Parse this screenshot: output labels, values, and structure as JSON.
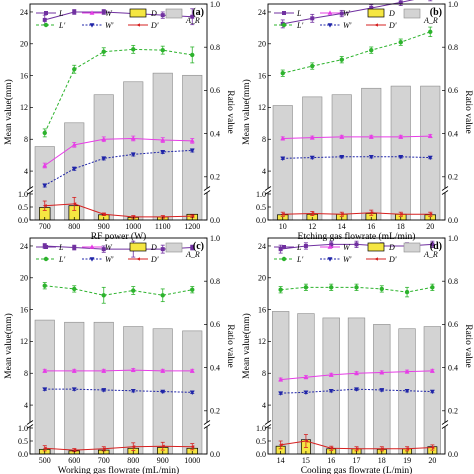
{
  "chart_data": [
    {
      "type": "bar+line",
      "panel_label": "(a)",
      "xlabel": "RF power (W)",
      "ylabel": "Mean value(mm)",
      "y2label": "Ratio value",
      "categories": [
        "700",
        "800",
        "900",
        "1000",
        "1100",
        "1200"
      ],
      "ylim": [
        0,
        25
      ],
      "y2lim": [
        0,
        1.0
      ],
      "yticks": [
        "0.0",
        "0.5",
        "1.0",
        "4",
        "8",
        "12",
        "16",
        "20",
        "24"
      ],
      "y2ticks": [
        "0.0",
        "0.2",
        "0.4",
        "0.6",
        "0.8",
        "1.0"
      ],
      "series": [
        {
          "name": "L",
          "key": "L",
          "color": "#7030a0",
          "values": [
            23.0,
            24.0,
            24.0,
            23.8,
            23.6,
            23.4
          ],
          "errors": [
            0.6,
            0.3,
            0.3,
            0.3,
            0.4,
            1.0
          ]
        },
        {
          "name": "W",
          "key": "W",
          "color": "#e63de6",
          "values": [
            4.7,
            7.3,
            8.0,
            8.1,
            7.9,
            7.8
          ],
          "errors": [
            0.3,
            0.3,
            0.3,
            0.3,
            0.3,
            0.3
          ]
        },
        {
          "name": "L'",
          "key": "Lp",
          "color": "#2db32d",
          "values": [
            8.8,
            16.8,
            19.0,
            19.3,
            19.2,
            18.6
          ],
          "errors": [
            0.5,
            0.5,
            0.5,
            0.5,
            0.5,
            1.0
          ]
        },
        {
          "name": "W'",
          "key": "Wp",
          "color": "#1f24a8",
          "values": [
            2.2,
            4.3,
            5.6,
            6.1,
            6.4,
            6.6
          ],
          "errors": [
            0.2,
            0.2,
            0.2,
            0.2,
            0.2,
            0.2
          ]
        },
        {
          "name": "D'",
          "key": "Dp",
          "color": "#d62020",
          "values": [
            0.55,
            0.62,
            0.22,
            0.12,
            0.12,
            0.15
          ],
          "errors": [
            0.18,
            0.25,
            0.05,
            0.05,
            0.05,
            0.05
          ]
        }
      ],
      "bars_D": {
        "name": "D",
        "color": "#f5e642",
        "values": [
          0.48,
          0.55,
          0.2,
          0.1,
          0.12,
          0.22
        ]
      },
      "bars_AR": {
        "name": "A_R",
        "color": "#d3d3d3",
        "values": [
          0.34,
          0.45,
          0.58,
          0.64,
          0.68,
          0.67
        ]
      }
    },
    {
      "type": "bar+line",
      "panel_label": "(b)",
      "xlabel": "Etching gas flowrate (mL/min)",
      "ylabel": "Mean value(mm)",
      "y2label": "Ratio value",
      "categories": [
        "10",
        "12",
        "14",
        "16",
        "18",
        "20"
      ],
      "ylim": [
        0,
        25
      ],
      "y2lim": [
        0,
        1.0
      ],
      "yticks": [
        "0.0",
        "0.5",
        "1.0",
        "4",
        "8",
        "12",
        "16",
        "20",
        "24"
      ],
      "y2ticks": [
        "0.0",
        "0.2",
        "0.4",
        "0.6",
        "0.8",
        "1.0"
      ],
      "series": [
        {
          "name": "L",
          "key": "L",
          "color": "#7030a0",
          "values": [
            22.5,
            23.2,
            23.8,
            24.5,
            25.2,
            26.0
          ],
          "errors": [
            0.5,
            0.5,
            0.4,
            0.4,
            0.4,
            0.6
          ]
        },
        {
          "name": "W",
          "key": "W",
          "color": "#e63de6",
          "values": [
            8.1,
            8.2,
            8.3,
            8.3,
            8.3,
            8.4
          ],
          "errors": [
            0.2,
            0.2,
            0.2,
            0.2,
            0.2,
            0.2
          ]
        },
        {
          "name": "L'",
          "key": "Lp",
          "color": "#2db32d",
          "values": [
            16.3,
            17.2,
            18.0,
            19.2,
            20.2,
            21.5
          ],
          "errors": [
            0.4,
            0.4,
            0.4,
            0.4,
            0.4,
            0.6
          ]
        },
        {
          "name": "W'",
          "key": "Wp",
          "color": "#1f24a8",
          "values": [
            5.6,
            5.7,
            5.8,
            5.8,
            5.8,
            5.7
          ],
          "errors": [
            0.15,
            0.15,
            0.15,
            0.15,
            0.15,
            0.15
          ]
        },
        {
          "name": "D'",
          "key": "Dp",
          "color": "#d62020",
          "values": [
            0.22,
            0.25,
            0.22,
            0.28,
            0.22,
            0.22
          ],
          "errors": [
            0.08,
            0.08,
            0.08,
            0.1,
            0.08,
            0.08
          ]
        }
      ],
      "bars_D": {
        "name": "D",
        "color": "#f5e642",
        "values": [
          0.2,
          0.22,
          0.22,
          0.25,
          0.22,
          0.2
        ]
      },
      "bars_AR": {
        "name": "A_R",
        "color": "#d3d3d3",
        "values": [
          0.53,
          0.57,
          0.58,
          0.61,
          0.62,
          0.62
        ]
      }
    },
    {
      "type": "bar+line",
      "panel_label": "(c)",
      "xlabel": "Working gas flowrate (mL/min)",
      "ylabel": "Mean value(mm)",
      "y2label": "Ratio value",
      "categories": [
        "500",
        "600",
        "700",
        "800",
        "900",
        "1000"
      ],
      "ylim": [
        0,
        25
      ],
      "y2lim": [
        0,
        1.0
      ],
      "yticks": [
        "0.0",
        "0.5",
        "1.0",
        "4",
        "8",
        "12",
        "16",
        "20",
        "24"
      ],
      "y2ticks": [
        "0.0",
        "0.2",
        "0.4",
        "0.6",
        "0.8",
        "1.0"
      ],
      "series": [
        {
          "name": "L",
          "key": "L",
          "color": "#7030a0",
          "values": [
            24.0,
            23.8,
            23.6,
            23.6,
            23.6,
            23.8
          ],
          "errors": [
            0.3,
            0.3,
            0.4,
            1.0,
            0.5,
            0.3
          ]
        },
        {
          "name": "W",
          "key": "W",
          "color": "#e63de6",
          "values": [
            8.3,
            8.3,
            8.3,
            8.4,
            8.3,
            8.3
          ],
          "errors": [
            0.2,
            0.2,
            0.2,
            0.2,
            0.2,
            0.2
          ]
        },
        {
          "name": "L'",
          "key": "Lp",
          "color": "#2db32d",
          "values": [
            19.0,
            18.6,
            17.8,
            18.4,
            17.8,
            18.5
          ],
          "errors": [
            0.4,
            0.4,
            1.0,
            0.5,
            0.8,
            0.4
          ]
        },
        {
          "name": "W'",
          "key": "Wp",
          "color": "#1f24a8",
          "values": [
            6.0,
            6.0,
            5.9,
            5.8,
            5.7,
            5.6
          ],
          "errors": [
            0.15,
            0.15,
            0.15,
            0.15,
            0.15,
            0.15
          ]
        },
        {
          "name": "D'",
          "key": "Dp",
          "color": "#d62020",
          "values": [
            0.22,
            0.15,
            0.2,
            0.28,
            0.3,
            0.28
          ],
          "errors": [
            0.1,
            0.06,
            0.08,
            0.15,
            0.15,
            0.12
          ]
        }
      ],
      "bars_D": {
        "name": "D",
        "color": "#f5e642",
        "values": [
          0.18,
          0.12,
          0.15,
          0.22,
          0.25,
          0.22
        ]
      },
      "bars_AR": {
        "name": "A_R",
        "color": "#d3d3d3",
        "values": [
          0.62,
          0.61,
          0.61,
          0.59,
          0.58,
          0.57
        ]
      }
    },
    {
      "type": "bar+line",
      "panel_label": "(d)",
      "xlabel": "Cooling gas flowrate (L/min)",
      "ylabel": "Mean value(mm)",
      "y2label": "Ratio value",
      "categories": [
        "14",
        "15",
        "16",
        "17",
        "18",
        "19",
        "20"
      ],
      "ylim": [
        0,
        25
      ],
      "y2lim": [
        0,
        1.0
      ],
      "yticks": [
        "0.0",
        "0.5",
        "1.0",
        "4",
        "8",
        "12",
        "16",
        "20",
        "24"
      ],
      "y2ticks": [
        "0.0",
        "0.2",
        "0.4",
        "0.6",
        "0.8",
        "1.0"
      ],
      "series": [
        {
          "name": "L",
          "key": "L",
          "color": "#7030a0",
          "values": [
            23.6,
            24.0,
            24.2,
            24.2,
            24.0,
            24.0,
            24.2
          ],
          "errors": [
            0.5,
            0.4,
            0.4,
            0.4,
            0.4,
            0.4,
            0.4
          ]
        },
        {
          "name": "W",
          "key": "W",
          "color": "#e63de6",
          "values": [
            7.2,
            7.5,
            7.8,
            8.0,
            8.1,
            8.2,
            8.3
          ],
          "errors": [
            0.2,
            0.2,
            0.2,
            0.2,
            0.2,
            0.2,
            0.2
          ]
        },
        {
          "name": "L'",
          "key": "Lp",
          "color": "#2db32d",
          "values": [
            18.5,
            18.8,
            18.8,
            18.8,
            18.6,
            18.2,
            18.8
          ],
          "errors": [
            0.4,
            0.4,
            0.4,
            0.4,
            0.4,
            0.6,
            0.4
          ]
        },
        {
          "name": "W'",
          "key": "Wp",
          "color": "#1f24a8",
          "values": [
            5.5,
            5.6,
            5.8,
            6.0,
            5.9,
            5.8,
            5.7
          ],
          "errors": [
            0.15,
            0.15,
            0.15,
            0.15,
            0.15,
            0.15,
            0.15
          ]
        },
        {
          "name": "D'",
          "key": "Dp",
          "color": "#d62020",
          "values": [
            0.35,
            0.5,
            0.22,
            0.2,
            0.2,
            0.2,
            0.25
          ],
          "errors": [
            0.15,
            0.25,
            0.08,
            0.08,
            0.08,
            0.08,
            0.1
          ]
        }
      ],
      "bars_D": {
        "name": "D",
        "color": "#f5e642",
        "values": [
          0.3,
          0.55,
          0.2,
          0.2,
          0.18,
          0.2,
          0.28
        ]
      },
      "bars_AR": {
        "name": "A_R",
        "color": "#d3d3d3",
        "values": [
          0.66,
          0.65,
          0.63,
          0.63,
          0.6,
          0.58,
          0.59
        ]
      }
    }
  ]
}
